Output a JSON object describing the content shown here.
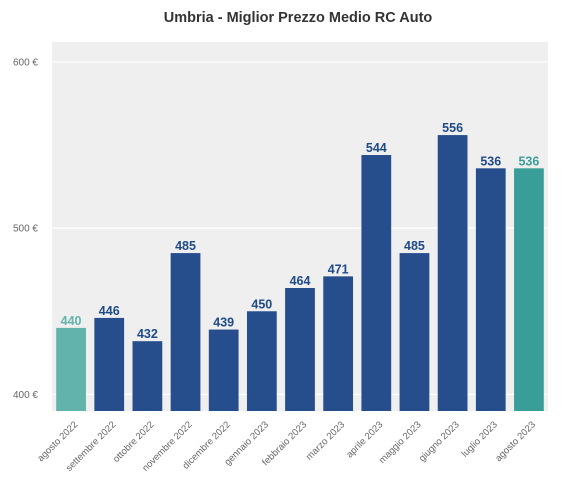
{
  "chart_data": {
    "type": "bar",
    "title": "Umbria - Miglior Prezzo Medio RC Auto",
    "xlabel": "",
    "ylabel": "",
    "ylim": [
      390,
      612
    ],
    "yticks": [
      400,
      500,
      600
    ],
    "ytick_labels": [
      "400 €",
      "500 €",
      "600 €"
    ],
    "grid": true,
    "categories": [
      "agosto 2022",
      "settembre 2022",
      "ottobre 2022",
      "novembre 2022",
      "dicembre 2022",
      "gennaio 2023",
      "febbraio 2023",
      "marzo 2023",
      "aprile 2023",
      "maggio 2023",
      "giugno 2023",
      "luglio 2023",
      "agosto 2023"
    ],
    "values": [
      440,
      446,
      432,
      485,
      439,
      450,
      464,
      471,
      544,
      485,
      556,
      536,
      536
    ],
    "bar_colors": [
      "#63b3ad",
      "#264d8c",
      "#264d8c",
      "#264d8c",
      "#264d8c",
      "#264d8c",
      "#264d8c",
      "#264d8c",
      "#264d8c",
      "#264d8c",
      "#264d8c",
      "#264d8c",
      "#3a9e98"
    ],
    "label_colors": [
      "#63b3ad",
      "#1f4a8a",
      "#1f4a8a",
      "#1f4a8a",
      "#1f4a8a",
      "#1f4a8a",
      "#1f4a8a",
      "#1f4a8a",
      "#1f4a8a",
      "#1f4a8a",
      "#1f4a8a",
      "#1f4a8a",
      "#3a9e98"
    ],
    "plot_background": "#efefef"
  }
}
